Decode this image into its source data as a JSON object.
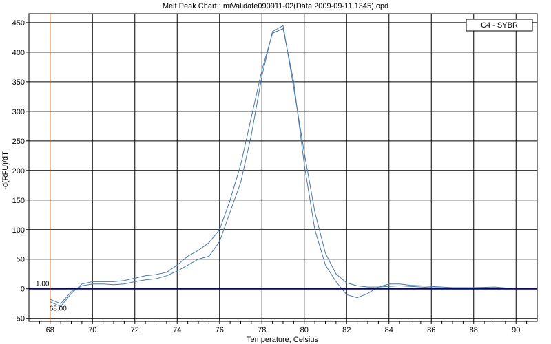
{
  "chart_data": {
    "type": "line",
    "title": "Melt Peak Chart : miValidate090911-02(Data 2009-09-11 1345).opd",
    "xlabel": "Temperature, Celsius",
    "ylabel": "-d(RFU)/dT",
    "xlim": [
      67,
      91
    ],
    "ylim": [
      -55,
      465
    ],
    "xticks": [
      68,
      70,
      72,
      74,
      76,
      78,
      80,
      82,
      84,
      86,
      88,
      90
    ],
    "yticks": [
      -50,
      0,
      50,
      100,
      150,
      200,
      250,
      300,
      350,
      400,
      450
    ],
    "grid": true,
    "legend": {
      "position": "top-right",
      "entries": [
        "C4 - SYBR"
      ]
    },
    "colors": {
      "series": "#4a77a8",
      "threshold": "#00008b",
      "cursor": "#e8a070",
      "grid": "#000000"
    },
    "threshold": {
      "y": 0,
      "label": "1.00"
    },
    "cursor": {
      "x": 68,
      "label": "68.00"
    },
    "series": [
      {
        "x": [
          68.0,
          68.5,
          69.0,
          69.5,
          70.0,
          70.5,
          71.0,
          71.5,
          72.0,
          72.5,
          73.0,
          73.5,
          74.0,
          74.5,
          75.0,
          75.5,
          76.0,
          76.5,
          77.0,
          77.5,
          78.0,
          78.5,
          79.0,
          79.5,
          80.0,
          80.5,
          81.0,
          81.5,
          82.0,
          82.5,
          83.0,
          83.5,
          84.0,
          84.5,
          85.0,
          85.5,
          86.0,
          87.0,
          88.0,
          89.0,
          90.0
        ],
        "values": [
          -18,
          -25,
          -5,
          5,
          8,
          8,
          7,
          8,
          12,
          15,
          17,
          22,
          30,
          40,
          50,
          55,
          80,
          130,
          180,
          260,
          360,
          435,
          445,
          340,
          230,
          130,
          60,
          25,
          10,
          5,
          3,
          3,
          4,
          5,
          4,
          3,
          2,
          1,
          1,
          1,
          0
        ]
      },
      {
        "x": [
          68.0,
          68.5,
          69.0,
          69.5,
          70.0,
          70.5,
          71.0,
          71.5,
          72.0,
          72.5,
          73.0,
          73.5,
          74.0,
          74.5,
          75.0,
          75.5,
          76.0,
          76.5,
          77.0,
          77.5,
          78.0,
          78.5,
          79.0,
          79.5,
          80.0,
          80.5,
          81.0,
          81.5,
          82.0,
          82.5,
          83.0,
          83.5,
          84.0,
          84.5,
          85.0,
          85.5,
          86.0,
          87.0,
          88.0,
          89.0,
          90.0
        ],
        "values": [
          -22,
          -30,
          -8,
          8,
          12,
          12,
          12,
          14,
          18,
          22,
          24,
          28,
          40,
          55,
          65,
          78,
          100,
          150,
          210,
          290,
          370,
          432,
          440,
          350,
          210,
          100,
          40,
          12,
          -10,
          -15,
          -8,
          3,
          8,
          8,
          6,
          5,
          4,
          2,
          2,
          3,
          0
        ]
      }
    ]
  }
}
